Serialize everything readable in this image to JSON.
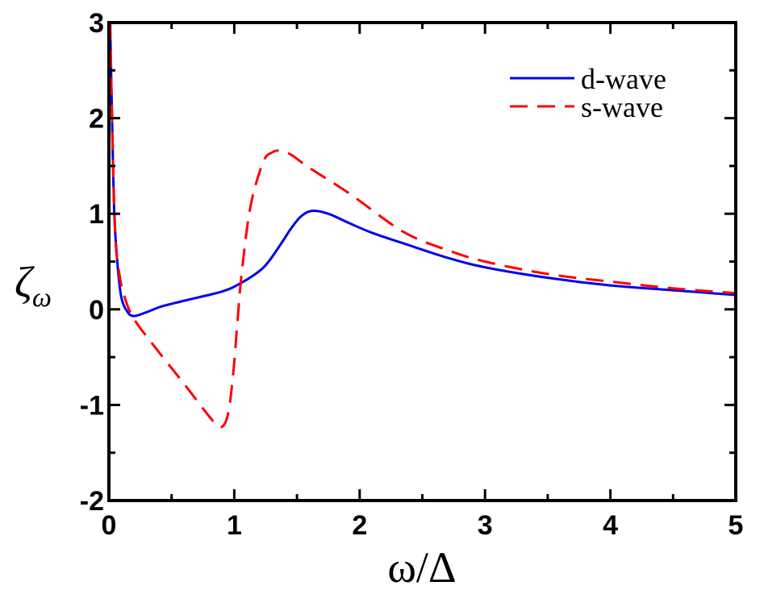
{
  "chart_data": {
    "type": "line",
    "title": "",
    "xlabel": "ω/Δ",
    "ylabel": "ζ",
    "ylabel_subscript": "ω",
    "xlim": [
      0,
      5
    ],
    "ylim": [
      -2,
      3
    ],
    "xticks": [
      0,
      1,
      2,
      3,
      4,
      5
    ],
    "yticks": [
      -2,
      -1,
      0,
      1,
      2,
      3
    ],
    "minor_tick_step": 0.5,
    "grid": false,
    "legend_position": "top-right",
    "series": [
      {
        "name": "d-wave",
        "color": "#0000ee",
        "style": "solid",
        "x": [
          0.01,
          0.025,
          0.043,
          0.07,
          0.1,
          0.15,
          0.2,
          0.3,
          0.42,
          0.6,
          0.91,
          1.06,
          1.2,
          1.28,
          1.38,
          1.45,
          1.53,
          1.62,
          1.75,
          1.92,
          2.1,
          2.35,
          2.7,
          3.0,
          3.5,
          4.0,
          4.5,
          5.0
        ],
        "y": [
          3.0,
          2.0,
          1.0,
          0.45,
          0.12,
          -0.03,
          -0.07,
          -0.03,
          0.03,
          0.09,
          0.19,
          0.28,
          0.4,
          0.51,
          0.7,
          0.84,
          0.97,
          1.03,
          1.0,
          0.9,
          0.8,
          0.69,
          0.54,
          0.44,
          0.33,
          0.25,
          0.2,
          0.15
        ]
      },
      {
        "name": "s-wave",
        "color": "#ff0000",
        "style": "dashed",
        "x": [
          0.01,
          0.025,
          0.05,
          0.08,
          0.12,
          0.2,
          0.4,
          0.6,
          0.8,
          0.88,
          0.93,
          0.965,
          1.0,
          1.02,
          1.06,
          1.13,
          1.23,
          1.3,
          1.36,
          1.45,
          1.6,
          1.92,
          2.35,
          2.7,
          3.0,
          3.5,
          4.0,
          4.5,
          5.0
        ],
        "y": [
          3.0,
          2.0,
          0.8,
          0.4,
          0.15,
          -0.1,
          -0.45,
          -0.78,
          -1.12,
          -1.23,
          -1.18,
          -0.98,
          -0.55,
          -0.22,
          0.39,
          1.08,
          1.54,
          1.64,
          1.66,
          1.62,
          1.48,
          1.21,
          0.81,
          0.62,
          0.5,
          0.37,
          0.29,
          0.22,
          0.17
        ]
      }
    ]
  }
}
